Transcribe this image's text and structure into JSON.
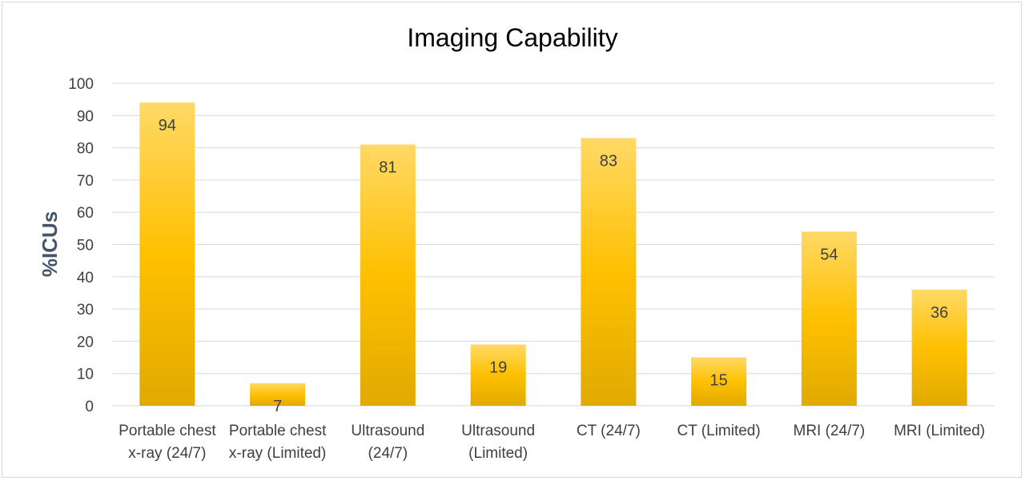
{
  "chart_data": {
    "type": "bar",
    "title": "Imaging Capability",
    "xlabel": "",
    "ylabel": "%ICUs",
    "ylim": [
      0,
      100
    ],
    "yticks": [
      0,
      10,
      20,
      30,
      40,
      50,
      60,
      70,
      80,
      90,
      100
    ],
    "grid": true,
    "categories": [
      [
        "Portable chest",
        "x-ray (24/7)"
      ],
      [
        "Portable chest",
        "x-ray (Limited)"
      ],
      [
        "Ultrasound",
        "(24/7)"
      ],
      [
        "Ultrasound",
        "(Limited)"
      ],
      [
        "CT (24/7)"
      ],
      [
        "CT (Limited)"
      ],
      [
        "MRI (24/7)"
      ],
      [
        "MRI (Limited)"
      ]
    ],
    "values": [
      94,
      7,
      81,
      19,
      83,
      15,
      54,
      36
    ],
    "bar_color_top": "#ffd966",
    "bar_color_mid": "#ffc000",
    "bar_color_bottom": "#e0aa00"
  }
}
